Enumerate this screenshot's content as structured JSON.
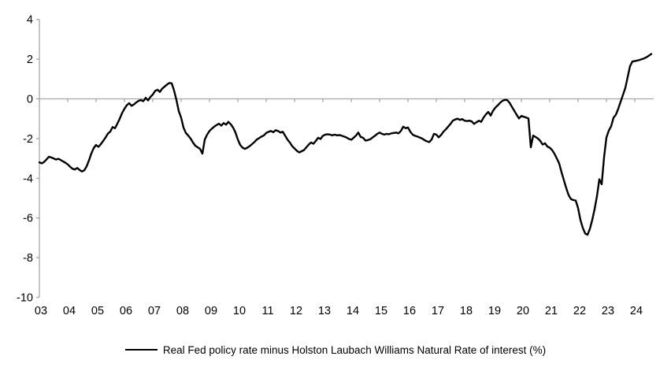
{
  "chart_data": {
    "type": "line",
    "title": "",
    "legend": "Real Fed policy rate minus Holston Laubach Williams Natural Rate of interest (%)",
    "xlabel": "",
    "ylabel": "",
    "ylim": [
      -10,
      4
    ],
    "grid": "zero-line-only",
    "legend_position": "bottom-center",
    "line_color": "#000000",
    "axis_color": "#a6a6a6",
    "label_color": "#000000",
    "y_tick_values": [
      4,
      2,
      0,
      -2,
      -4,
      -6,
      -8,
      -10
    ],
    "y_tick_labels": [
      "4",
      "2",
      "0",
      "-2",
      "-4",
      "-6",
      "-8",
      "-10"
    ],
    "x_tick_labels": [
      "03",
      "04",
      "05",
      "06",
      "07",
      "08",
      "09",
      "10",
      "11",
      "12",
      "13",
      "14",
      "15",
      "16",
      "17",
      "18",
      "19",
      "20",
      "21",
      "22",
      "23",
      "24"
    ],
    "series": [
      {
        "name": "Real Fed policy rate minus Holston Laubach Williams Natural Rate of interest (%)",
        "frequency": "monthly",
        "start_year": 2003,
        "points_per_year": 12,
        "values": [
          -3.2,
          -3.25,
          -3.18,
          -3.05,
          -2.92,
          -2.95,
          -3.0,
          -3.06,
          -3.02,
          -3.08,
          -3.15,
          -3.22,
          -3.3,
          -3.42,
          -3.52,
          -3.56,
          -3.48,
          -3.58,
          -3.66,
          -3.6,
          -3.4,
          -3.1,
          -2.75,
          -2.48,
          -2.32,
          -2.42,
          -2.28,
          -2.12,
          -1.95,
          -1.75,
          -1.65,
          -1.42,
          -1.48,
          -1.25,
          -1.0,
          -0.72,
          -0.5,
          -0.32,
          -0.22,
          -0.35,
          -0.28,
          -0.18,
          -0.1,
          -0.06,
          -0.12,
          0.05,
          -0.08,
          0.1,
          0.22,
          0.4,
          0.46,
          0.35,
          0.52,
          0.62,
          0.72,
          0.8,
          0.78,
          0.42,
          -0.05,
          -0.62,
          -0.95,
          -1.45,
          -1.72,
          -1.85,
          -2.0,
          -2.2,
          -2.36,
          -2.44,
          -2.52,
          -2.76,
          -2.05,
          -1.8,
          -1.62,
          -1.5,
          -1.4,
          -1.32,
          -1.25,
          -1.35,
          -1.22,
          -1.3,
          -1.16,
          -1.28,
          -1.45,
          -1.7,
          -2.05,
          -2.32,
          -2.46,
          -2.52,
          -2.46,
          -2.38,
          -2.28,
          -2.18,
          -2.05,
          -1.98,
          -1.9,
          -1.84,
          -1.72,
          -1.66,
          -1.62,
          -1.68,
          -1.58,
          -1.62,
          -1.7,
          -1.66,
          -1.85,
          -2.05,
          -2.2,
          -2.38,
          -2.5,
          -2.62,
          -2.7,
          -2.64,
          -2.58,
          -2.44,
          -2.3,
          -2.2,
          -2.26,
          -2.12,
          -1.96,
          -2.02,
          -1.86,
          -1.8,
          -1.78,
          -1.8,
          -1.84,
          -1.8,
          -1.84,
          -1.82,
          -1.86,
          -1.9,
          -1.95,
          -2.02,
          -2.06,
          -1.96,
          -1.85,
          -1.7,
          -1.92,
          -1.96,
          -2.1,
          -2.08,
          -2.04,
          -1.95,
          -1.86,
          -1.76,
          -1.7,
          -1.76,
          -1.8,
          -1.76,
          -1.78,
          -1.74,
          -1.72,
          -1.7,
          -1.74,
          -1.62,
          -1.4,
          -1.48,
          -1.44,
          -1.66,
          -1.8,
          -1.86,
          -1.9,
          -1.95,
          -2.0,
          -2.08,
          -2.14,
          -2.18,
          -2.05,
          -1.76,
          -1.8,
          -1.94,
          -1.82,
          -1.66,
          -1.54,
          -1.4,
          -1.26,
          -1.1,
          -1.04,
          -1.0,
          -1.06,
          -1.02,
          -1.1,
          -1.12,
          -1.1,
          -1.14,
          -1.26,
          -1.18,
          -1.1,
          -1.16,
          -0.94,
          -0.78,
          -0.66,
          -0.84,
          -0.6,
          -0.44,
          -0.33,
          -0.2,
          -0.1,
          -0.05,
          -0.06,
          -0.2,
          -0.4,
          -0.6,
          -0.8,
          -0.99,
          -0.86,
          -0.9,
          -0.94,
          -0.99,
          -2.44,
          -1.85,
          -1.92,
          -2.0,
          -2.12,
          -2.3,
          -2.24,
          -2.4,
          -2.46,
          -2.58,
          -2.76,
          -3.0,
          -3.25,
          -3.7,
          -4.1,
          -4.5,
          -4.85,
          -5.05,
          -5.1,
          -5.12,
          -5.5,
          -6.1,
          -6.5,
          -6.78,
          -6.85,
          -6.55,
          -6.1,
          -5.55,
          -4.9,
          -4.05,
          -4.3,
          -2.95,
          -1.95,
          -1.6,
          -1.38,
          -0.95,
          -0.8,
          -0.5,
          -0.15,
          0.2,
          0.55,
          1.1,
          1.65,
          1.88,
          1.9,
          1.93,
          1.96,
          2.0,
          2.04,
          2.1,
          2.18,
          2.26
        ]
      }
    ]
  }
}
